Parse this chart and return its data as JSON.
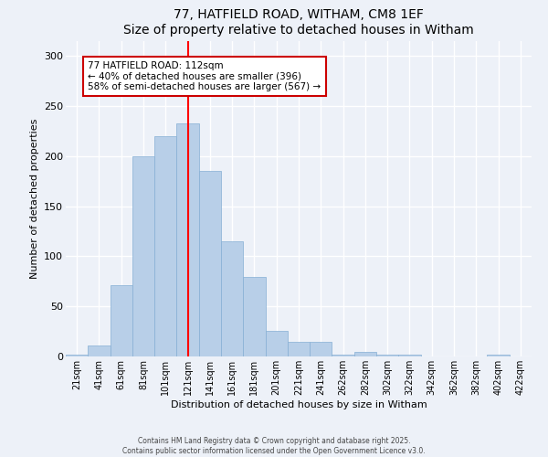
{
  "title": "77, HATFIELD ROAD, WITHAM, CM8 1EF",
  "subtitle": "Size of property relative to detached houses in Witham",
  "xlabel": "Distribution of detached houses by size in Witham",
  "ylabel": "Number of detached properties",
  "bar_labels": [
    "21sqm",
    "41sqm",
    "61sqm",
    "81sqm",
    "101sqm",
    "121sqm",
    "141sqm",
    "161sqm",
    "181sqm",
    "201sqm",
    "221sqm",
    "241sqm",
    "262sqm",
    "282sqm",
    "302sqm",
    "322sqm",
    "342sqm",
    "362sqm",
    "382sqm",
    "402sqm",
    "422sqm"
  ],
  "bar_values": [
    2,
    11,
    71,
    200,
    220,
    233,
    185,
    115,
    79,
    26,
    15,
    15,
    2,
    5,
    2,
    2,
    0,
    0,
    0,
    2,
    0
  ],
  "bar_color": "#b8cfe8",
  "bar_edgecolor": "#85afd4",
  "bar_width": 1.0,
  "red_line_x": 5.0,
  "annotation_text": "77 HATFIELD ROAD: 112sqm\n← 40% of detached houses are smaller (396)\n58% of semi-detached houses are larger (567) →",
  "annotation_box_facecolor": "#ffffff",
  "annotation_box_edgecolor": "#cc0000",
  "ylim": [
    0,
    315
  ],
  "yticks": [
    0,
    50,
    100,
    150,
    200,
    250,
    300
  ],
  "footnote1": "Contains HM Land Registry data © Crown copyright and database right 2025.",
  "footnote2": "Contains public sector information licensed under the Open Government Licence v3.0.",
  "bg_color": "#edf1f8",
  "grid_color": "#ffffff"
}
